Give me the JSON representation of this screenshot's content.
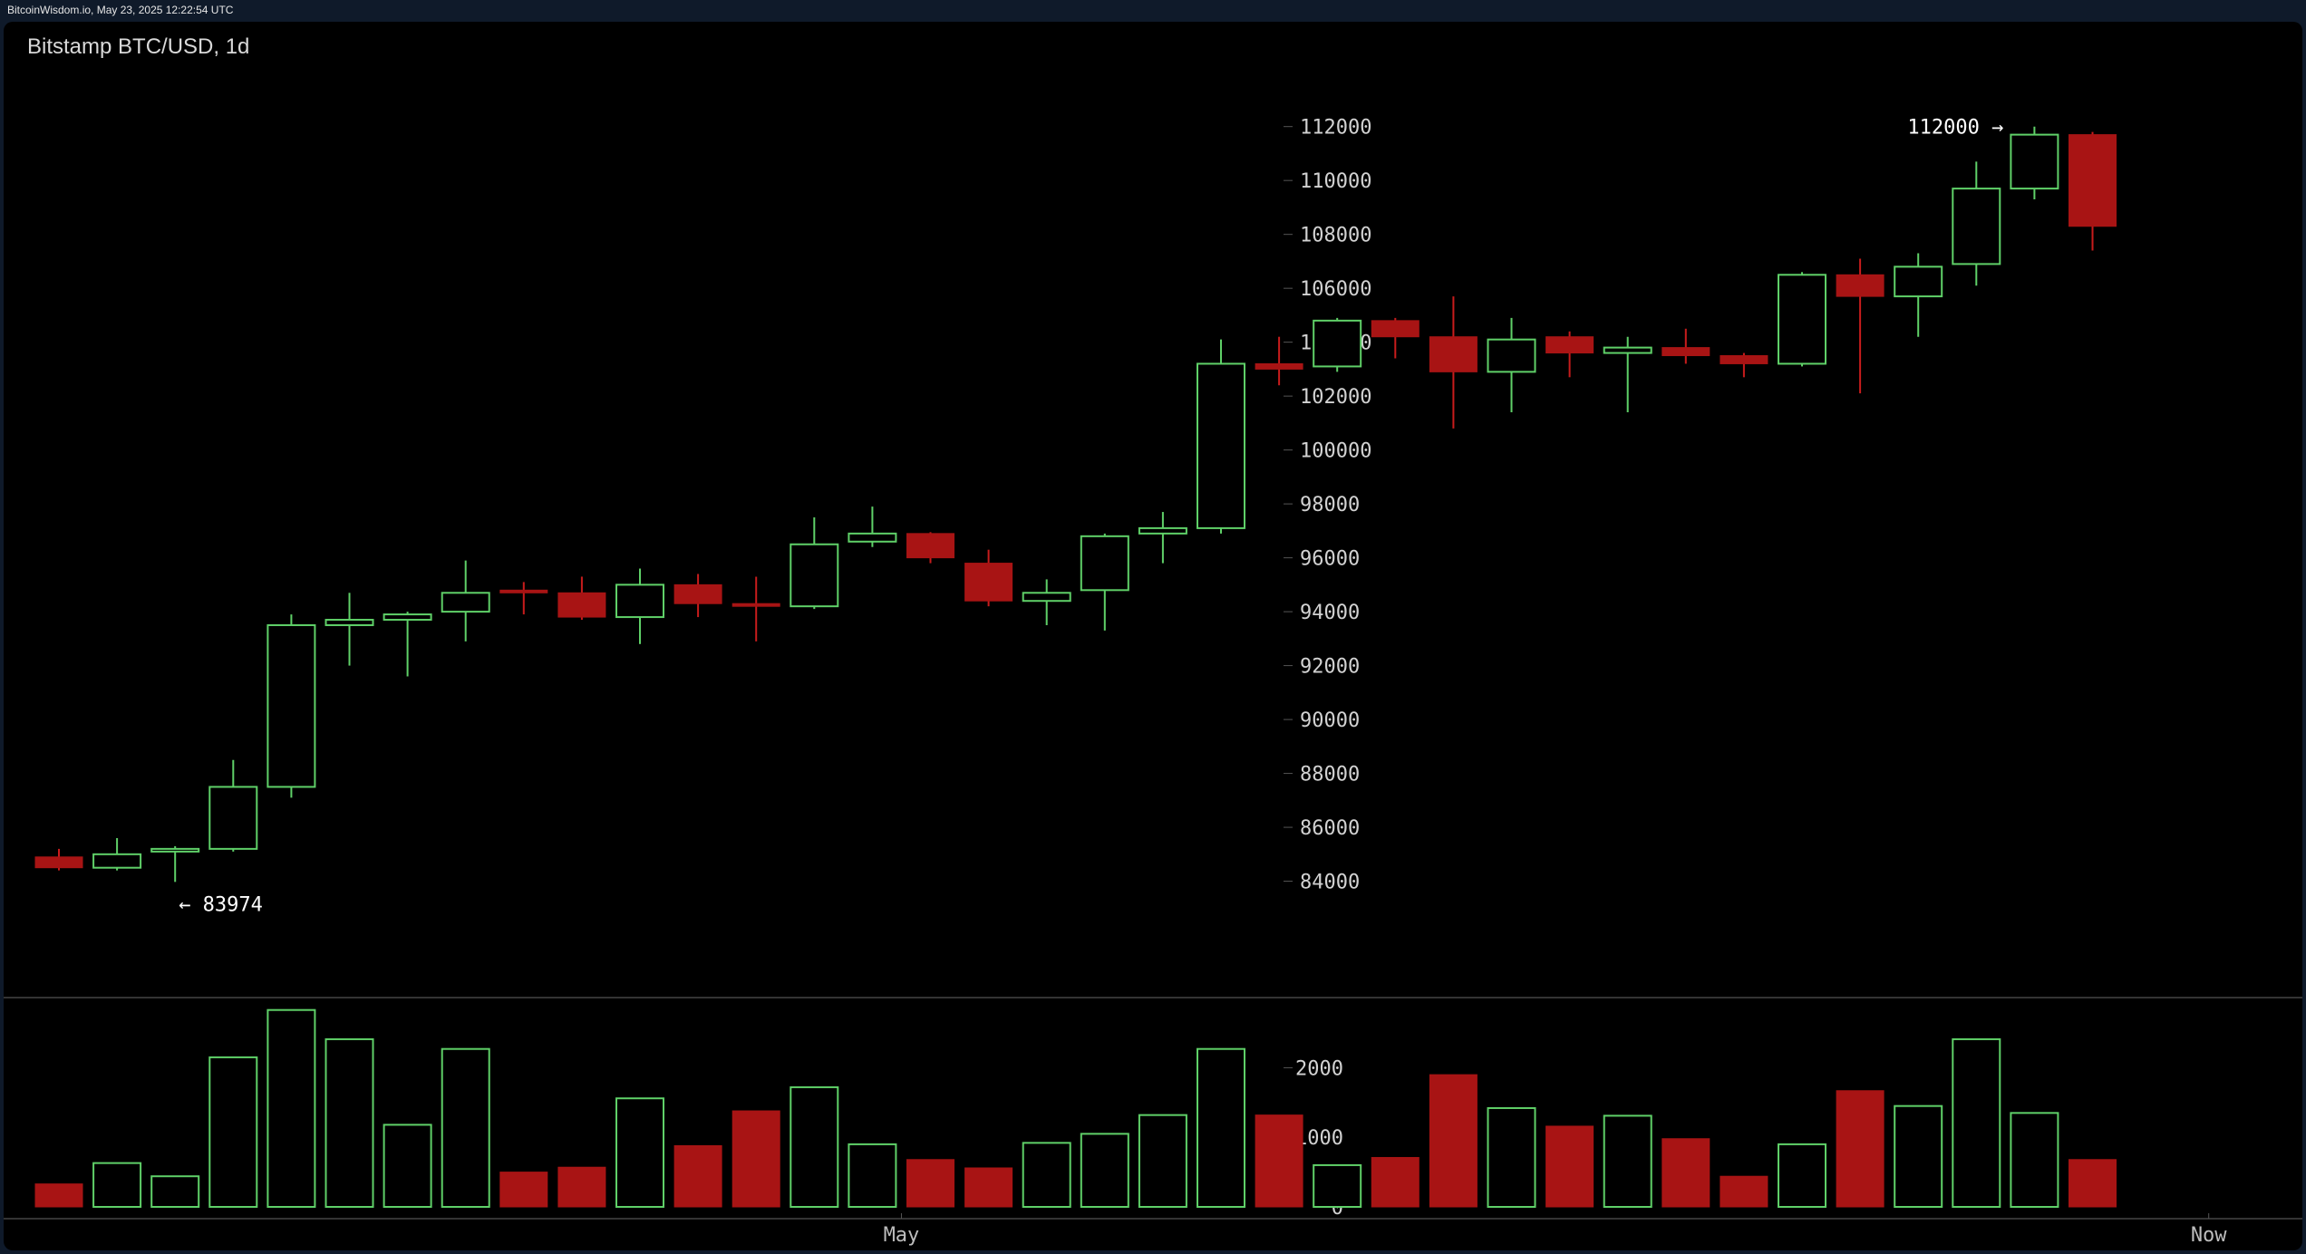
{
  "header": {
    "timestamp_text": "BitcoinWisdom.io, May 23, 2025 12:22:54 UTC"
  },
  "chart_title": "Bitstamp BTC/USD, 1d",
  "colors": {
    "up": "#5fd068",
    "down": "#a81414",
    "background": "#000000",
    "grid": "#555555"
  },
  "chart_data": {
    "type": "candlestick",
    "title": "Bitstamp BTC/USD, 1d",
    "interval": "1d",
    "price_axis": {
      "ticks": [
        84000,
        86000,
        88000,
        90000,
        92000,
        94000,
        96000,
        98000,
        100000,
        102000,
        104000,
        106000,
        108000,
        110000,
        112000
      ],
      "range": [
        81800,
        113200
      ]
    },
    "volume_axis": {
      "ticks": [
        0,
        1000,
        2000
      ],
      "range": [
        0,
        2800
      ]
    },
    "x_labels": [
      {
        "text": "May",
        "index": 14.5
      },
      {
        "text": "Now",
        "index": 37
      }
    ],
    "annotations": [
      {
        "text": "112000 →",
        "value": 112000,
        "index": 34,
        "align": "left-of"
      },
      {
        "text": "← 83974",
        "value": 83974,
        "index": 2,
        "align": "right-of"
      }
    ],
    "candles": [
      {
        "o": 84900,
        "h": 85200,
        "l": 84400,
        "c": 84500,
        "v": 330
      },
      {
        "o": 84500,
        "h": 85600,
        "l": 84400,
        "c": 85000,
        "v": 630
      },
      {
        "o": 85100,
        "h": 85300,
        "l": 83974,
        "c": 85200,
        "v": 440
      },
      {
        "o": 85200,
        "h": 88500,
        "l": 85100,
        "c": 87500,
        "v": 2150
      },
      {
        "o": 87500,
        "h": 93900,
        "l": 87100,
        "c": 93500,
        "v": 2830
      },
      {
        "o": 93500,
        "h": 94700,
        "l": 92000,
        "c": 93700,
        "v": 2410
      },
      {
        "o": 93700,
        "h": 94000,
        "l": 91600,
        "c": 93900,
        "v": 1180
      },
      {
        "o": 94000,
        "h": 95900,
        "l": 92900,
        "c": 94700,
        "v": 2270
      },
      {
        "o": 94800,
        "h": 95100,
        "l": 93900,
        "c": 94700,
        "v": 500
      },
      {
        "o": 94700,
        "h": 95300,
        "l": 93700,
        "c": 93800,
        "v": 570
      },
      {
        "o": 93800,
        "h": 95600,
        "l": 92800,
        "c": 95000,
        "v": 1560
      },
      {
        "o": 95000,
        "h": 95400,
        "l": 93800,
        "c": 94300,
        "v": 880
      },
      {
        "o": 94300,
        "h": 95300,
        "l": 92900,
        "c": 94200,
        "v": 1380
      },
      {
        "o": 94200,
        "h": 97500,
        "l": 94100,
        "c": 96500,
        "v": 1720
      },
      {
        "o": 96600,
        "h": 97900,
        "l": 96400,
        "c": 96900,
        "v": 900
      },
      {
        "o": 96900,
        "h": 96950,
        "l": 95800,
        "c": 96000,
        "v": 680
      },
      {
        "o": 95800,
        "h": 96300,
        "l": 94200,
        "c": 94400,
        "v": 560
      },
      {
        "o": 94400,
        "h": 95200,
        "l": 93500,
        "c": 94700,
        "v": 920
      },
      {
        "o": 94800,
        "h": 96900,
        "l": 93300,
        "c": 96800,
        "v": 1050
      },
      {
        "o": 96900,
        "h": 97700,
        "l": 95800,
        "c": 97100,
        "v": 1320
      },
      {
        "o": 97100,
        "h": 104100,
        "l": 96900,
        "c": 103200,
        "v": 2270
      },
      {
        "o": 103200,
        "h": 104200,
        "l": 102400,
        "c": 103000,
        "v": 1320
      },
      {
        "o": 103100,
        "h": 104900,
        "l": 102900,
        "c": 104800,
        "v": 600
      },
      {
        "o": 104800,
        "h": 104900,
        "l": 103400,
        "c": 104200,
        "v": 710
      },
      {
        "o": 104200,
        "h": 105700,
        "l": 100800,
        "c": 102900,
        "v": 1900
      },
      {
        "o": 102900,
        "h": 104900,
        "l": 101400,
        "c": 104100,
        "v": 1420
      },
      {
        "o": 104200,
        "h": 104400,
        "l": 102700,
        "c": 103600,
        "v": 1160
      },
      {
        "o": 103600,
        "h": 104200,
        "l": 101400,
        "c": 103800,
        "v": 1310
      },
      {
        "o": 103800,
        "h": 104500,
        "l": 103200,
        "c": 103500,
        "v": 980
      },
      {
        "o": 103500,
        "h": 103600,
        "l": 102700,
        "c": 103200,
        "v": 440
      },
      {
        "o": 103200,
        "h": 106600,
        "l": 103100,
        "c": 106500,
        "v": 900
      },
      {
        "o": 106500,
        "h": 107100,
        "l": 102100,
        "c": 105700,
        "v": 1670
      },
      {
        "o": 105700,
        "h": 107300,
        "l": 104200,
        "c": 106800,
        "v": 1450
      },
      {
        "o": 106900,
        "h": 110700,
        "l": 106100,
        "c": 109700,
        "v": 2410
      },
      {
        "o": 109700,
        "h": 112000,
        "l": 109300,
        "c": 111700,
        "v": 1350
      },
      {
        "o": 111700,
        "h": 111800,
        "l": 107400,
        "c": 108300,
        "v": 680
      }
    ]
  }
}
